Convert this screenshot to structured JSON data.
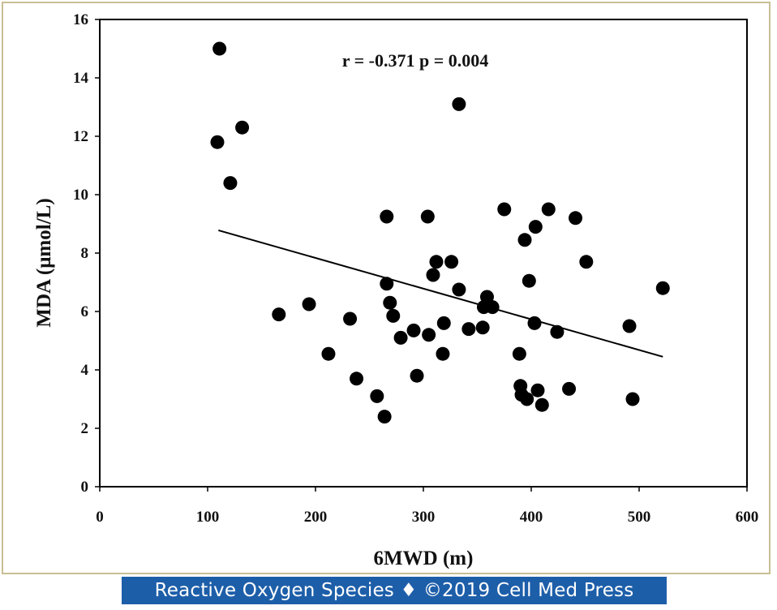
{
  "chart_data": {
    "type": "scatter",
    "xlabel": "6MWD (m)",
    "ylabel": "MDA (μmol/L)",
    "xlim": [
      0,
      600
    ],
    "ylim": [
      0,
      16
    ],
    "xticks": [
      0,
      100,
      200,
      300,
      400,
      500,
      600
    ],
    "yticks": [
      0,
      2,
      4,
      6,
      8,
      10,
      12,
      14,
      16
    ],
    "annotation": "r = -0.371  p = 0.004",
    "grid": false,
    "marker_color": "#000000",
    "points": [
      {
        "x": 111,
        "y": 15.0
      },
      {
        "x": 109,
        "y": 11.8
      },
      {
        "x": 132,
        "y": 12.3
      },
      {
        "x": 121,
        "y": 10.4
      },
      {
        "x": 333,
        "y": 13.1
      },
      {
        "x": 166,
        "y": 5.9
      },
      {
        "x": 194,
        "y": 6.25
      },
      {
        "x": 212,
        "y": 4.55
      },
      {
        "x": 232,
        "y": 5.75
      },
      {
        "x": 238,
        "y": 3.7
      },
      {
        "x": 257,
        "y": 3.1
      },
      {
        "x": 264,
        "y": 2.4
      },
      {
        "x": 266,
        "y": 9.25
      },
      {
        "x": 266,
        "y": 6.95
      },
      {
        "x": 269,
        "y": 6.3
      },
      {
        "x": 272,
        "y": 5.85
      },
      {
        "x": 279,
        "y": 5.1
      },
      {
        "x": 291,
        "y": 5.35
      },
      {
        "x": 294,
        "y": 3.8
      },
      {
        "x": 304,
        "y": 9.25
      },
      {
        "x": 305,
        "y": 5.2
      },
      {
        "x": 309,
        "y": 7.25
      },
      {
        "x": 312,
        "y": 7.7
      },
      {
        "x": 318,
        "y": 4.55
      },
      {
        "x": 319,
        "y": 5.6
      },
      {
        "x": 326,
        "y": 7.7
      },
      {
        "x": 333,
        "y": 6.75
      },
      {
        "x": 342,
        "y": 5.4
      },
      {
        "x": 355,
        "y": 5.45
      },
      {
        "x": 356,
        "y": 6.15
      },
      {
        "x": 359,
        "y": 6.5
      },
      {
        "x": 364,
        "y": 6.15
      },
      {
        "x": 375,
        "y": 9.5
      },
      {
        "x": 389,
        "y": 4.55
      },
      {
        "x": 390,
        "y": 3.45
      },
      {
        "x": 391,
        "y": 3.15
      },
      {
        "x": 394,
        "y": 8.45
      },
      {
        "x": 396,
        "y": 3.0
      },
      {
        "x": 398,
        "y": 7.05
      },
      {
        "x": 403,
        "y": 5.6
      },
      {
        "x": 404,
        "y": 8.9
      },
      {
        "x": 406,
        "y": 3.3
      },
      {
        "x": 410,
        "y": 2.8
      },
      {
        "x": 416,
        "y": 9.5
      },
      {
        "x": 424,
        "y": 5.3
      },
      {
        "x": 435,
        "y": 3.35
      },
      {
        "x": 441,
        "y": 9.2
      },
      {
        "x": 451,
        "y": 7.7
      },
      {
        "x": 491,
        "y": 5.5
      },
      {
        "x": 494,
        "y": 3.0
      },
      {
        "x": 522,
        "y": 6.8
      }
    ],
    "trendline": {
      "x1": 110,
      "y1": 8.78,
      "x2": 522,
      "y2": 4.45
    }
  },
  "footer": {
    "text": "Reactive Oxygen Species ♦ ©2019 Cell Med Press",
    "background": "#1d5ea9"
  }
}
